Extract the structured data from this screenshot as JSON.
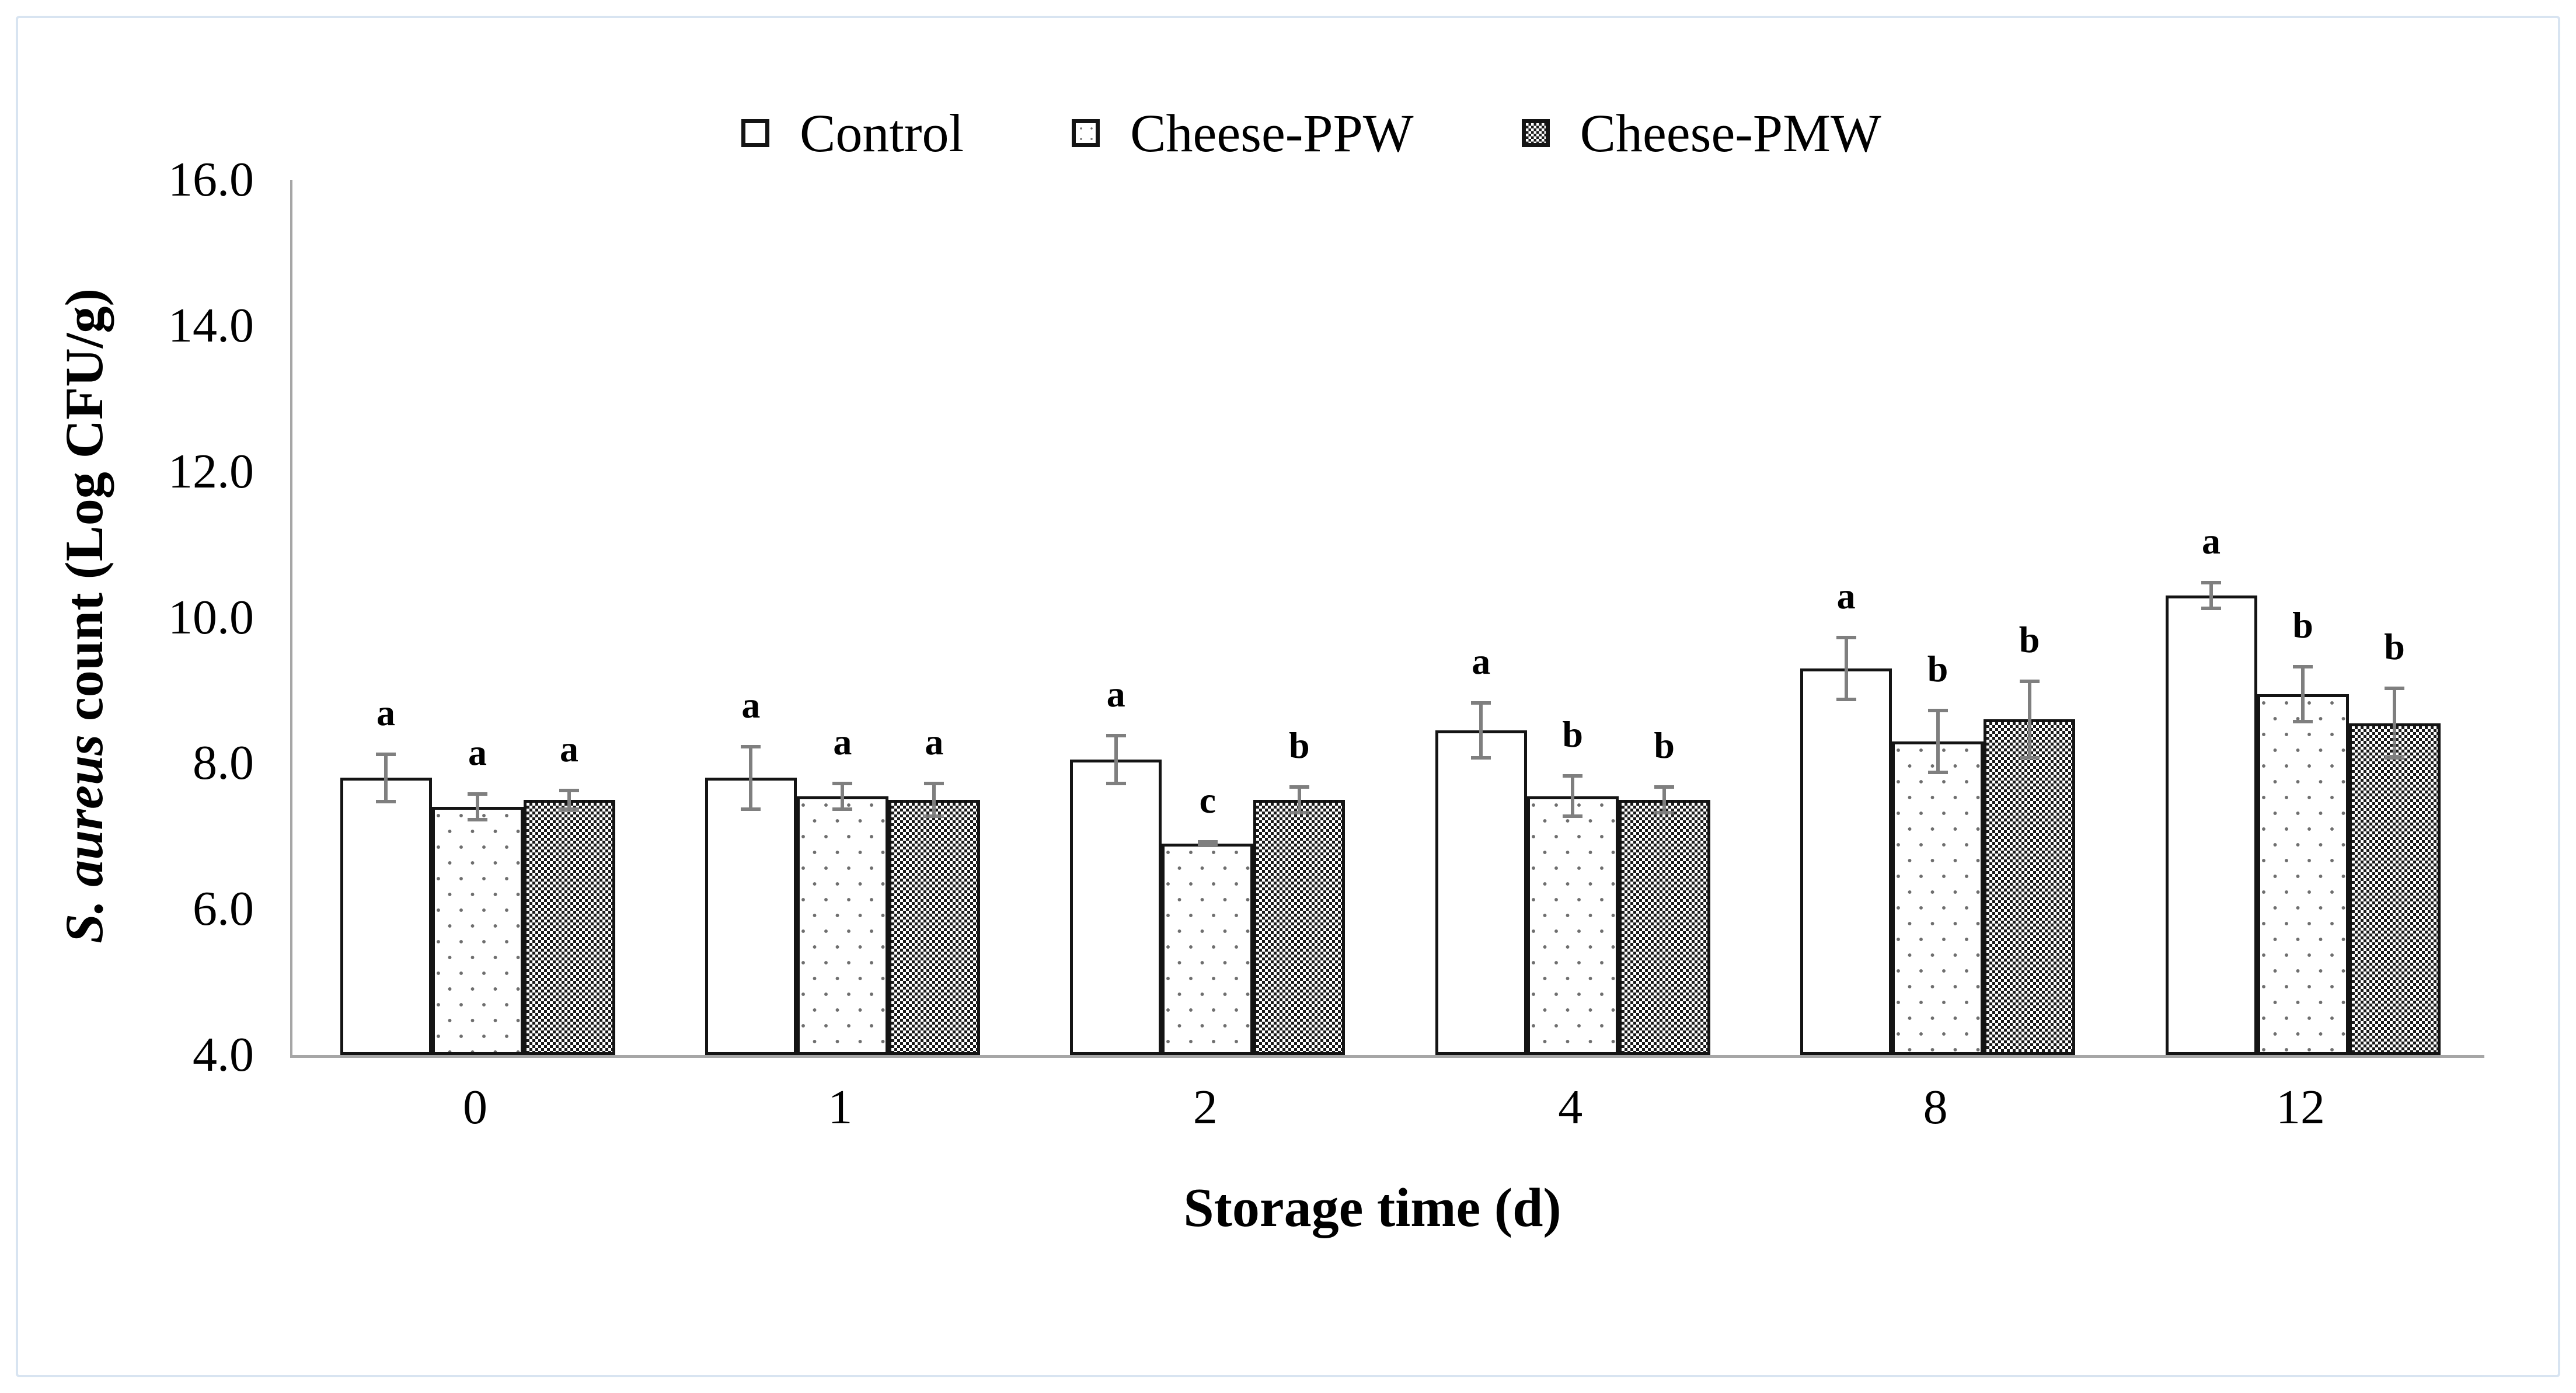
{
  "figure": {
    "background_color": "#ffffff",
    "frame_border_color": "#d8e4f1"
  },
  "chart_data": {
    "type": "bar",
    "title": "",
    "xlabel": "Storage time (d)",
    "ylabel": "S. aureus count (Log CFU/g)",
    "ylabel_italic": "S. aureus",
    "ylabel_rest": " count (Log CFU/g)",
    "ylim": [
      4.0,
      16.0
    ],
    "ytick_step": 2.0,
    "ytick_labels": [
      "4.0",
      "6.0",
      "8.0",
      "10.0",
      "12.0",
      "14.0",
      "16.0"
    ],
    "categories": [
      "0",
      "1",
      "2",
      "4",
      "8",
      "12"
    ],
    "grid": false,
    "legend_position": "top-center",
    "bar_baseline": 4.0,
    "series": [
      {
        "name": "Control",
        "pattern": "plain",
        "fill": "#ffffff",
        "values": [
          7.8,
          7.8,
          8.05,
          8.45,
          9.3,
          10.3
        ],
        "errors": [
          0.35,
          0.45,
          0.35,
          0.4,
          0.45,
          0.2
        ],
        "sig_letters": [
          "a",
          "a",
          "a",
          "a",
          "a",
          "a"
        ]
      },
      {
        "name": "Cheese-PPW",
        "pattern": "dots",
        "fill": "#ffffff",
        "pattern_color": "#6e6e6e",
        "values": [
          7.4,
          7.55,
          6.9,
          7.55,
          8.3,
          8.95
        ],
        "errors": [
          0.2,
          0.2,
          0.05,
          0.3,
          0.45,
          0.4
        ],
        "sig_letters": [
          "a",
          "a",
          "c",
          "b",
          "b",
          "b"
        ]
      },
      {
        "name": "Cheese-PMW",
        "pattern": "checker",
        "fill": "#ffffff",
        "pattern_color": "#1a1a1a",
        "values": [
          7.5,
          7.5,
          7.5,
          7.5,
          8.6,
          8.55
        ],
        "errors": [
          0.15,
          0.25,
          0.2,
          0.2,
          0.55,
          0.5
        ],
        "sig_letters": [
          "a",
          "a",
          "b",
          "b",
          "b",
          "b"
        ]
      }
    ],
    "error_bar_color": "#7f7f7f",
    "axis_color": "#a6a6a6",
    "text_color": "#000000"
  }
}
